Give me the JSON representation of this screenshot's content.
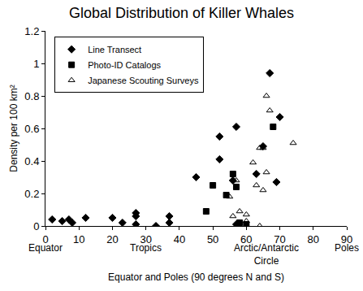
{
  "chart_data": {
    "type": "scatter",
    "title": "Global Distribution of Killer Whales",
    "x_label": "Equator and Poles (90 degrees N and S)",
    "y_label": "Density per 100 km²",
    "xlim": [
      0,
      90
    ],
    "xticks": [
      0,
      10,
      20,
      30,
      40,
      50,
      60,
      70,
      80,
      90
    ],
    "ylim": [
      0,
      1.2
    ],
    "yticks": [
      0,
      0.2,
      0.4,
      0.6,
      0.8,
      1,
      1.2
    ],
    "grid": false,
    "legend": "upper left",
    "annotations": [
      {
        "text": "Equator",
        "x": 0
      },
      {
        "text": "Tropics",
        "x": 30
      },
      {
        "text": "Arctic/Antarctic\nCircle",
        "x": 66
      },
      {
        "text": "Poles",
        "x": 90
      }
    ],
    "series": [
      {
        "name": "Line Transect",
        "color": "#000000",
        "marker": "diamond",
        "x": [
          2,
          5,
          7,
          8,
          12,
          20,
          23,
          27,
          27,
          27,
          33,
          37,
          37,
          45,
          52,
          52,
          57,
          56,
          57,
          63,
          65,
          67,
          69,
          70
        ],
        "values": [
          0.04,
          0.03,
          0.04,
          0.02,
          0.05,
          0.05,
          0.02,
          0.08,
          0.06,
          0.01,
          0.0,
          0.06,
          0.02,
          0.3,
          0.55,
          0.41,
          0.61,
          0.28,
          0.01,
          0.32,
          0.49,
          0.94,
          0.27,
          0.67
        ]
      },
      {
        "name": "Photo-ID Catalogs",
        "color": "#000000",
        "marker": "square",
        "x": [
          48,
          50,
          54,
          56,
          57,
          58,
          60,
          68
        ],
        "values": [
          0.09,
          0.25,
          0.19,
          0.32,
          0.24,
          0.02,
          0.01,
          0.61
        ]
      },
      {
        "name": "Japanese Scouting Surveys",
        "color": "#000000",
        "marker": "triangle-up-open",
        "x": [
          55,
          56,
          57,
          58,
          60,
          60,
          62,
          63,
          64,
          64,
          65,
          65,
          66,
          66,
          67,
          74
        ],
        "values": [
          0.18,
          0.06,
          0.28,
          0.09,
          0.07,
          0.03,
          0.39,
          0.25,
          0.48,
          0.0,
          0.48,
          0.22,
          0.8,
          0.33,
          0.71,
          0.51
        ]
      }
    ]
  }
}
